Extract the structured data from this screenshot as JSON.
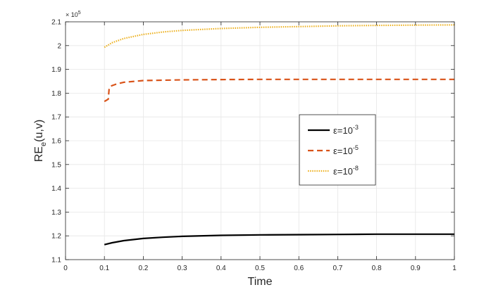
{
  "chart_data": {
    "type": "line",
    "xlabel": "Time",
    "ylabel": "RE",
    "ylabel_sub": "e",
    "ylabel_tail": "(u,v)",
    "y_multiplier_base": "× 10",
    "y_multiplier_exp": "5",
    "xlim": [
      0,
      1
    ],
    "ylim": [
      1.1,
      2.1
    ],
    "x_ticks": [
      0,
      0.1,
      0.2,
      0.3,
      0.4,
      0.5,
      0.6,
      0.7,
      0.8,
      0.9,
      1
    ],
    "x_tick_labels": [
      "0",
      "0.1",
      "0.2",
      "0.3",
      "0.4",
      "0.5",
      "0.6",
      "0.7",
      "0.8",
      "0.9",
      "1"
    ],
    "y_ticks": [
      1.1,
      1.2,
      1.3,
      1.4,
      1.5,
      1.6,
      1.7,
      1.8,
      1.9,
      2,
      2.1
    ],
    "y_tick_labels": [
      "1.1",
      "1.2",
      "1.3",
      "1.4",
      "1.5",
      "1.6",
      "1.7",
      "1.8",
      "1.9",
      "2",
      "2.1"
    ],
    "grid": true,
    "legend_position": "right-center",
    "series": [
      {
        "name": "ε=10",
        "name_exp": "-3",
        "color": "#000000",
        "dash": "solid",
        "x": [
          0.1,
          0.12,
          0.15,
          0.2,
          0.25,
          0.3,
          0.4,
          0.5,
          0.6,
          0.7,
          0.8,
          0.9,
          1.0
        ],
        "y": [
          1.163,
          1.171,
          1.18,
          1.189,
          1.194,
          1.198,
          1.202,
          1.204,
          1.205,
          1.206,
          1.207,
          1.207,
          1.207
        ]
      },
      {
        "name": "ε=10",
        "name_exp": "-5",
        "color": "#d95319",
        "dash": "dashed",
        "x": [
          0.1,
          0.11,
          0.112,
          0.115,
          0.12,
          0.13,
          0.15,
          0.2,
          0.3,
          0.4,
          0.5,
          0.6,
          0.7,
          0.8,
          0.9,
          1.0
        ],
        "y": [
          1.765,
          1.775,
          1.815,
          1.828,
          1.832,
          1.838,
          1.846,
          1.853,
          1.856,
          1.857,
          1.858,
          1.858,
          1.858,
          1.858,
          1.858,
          1.858
        ]
      },
      {
        "name": "ε=10",
        "name_exp": "-8",
        "color": "#edb120",
        "dash": "dotted",
        "x": [
          0.1,
          0.12,
          0.15,
          0.2,
          0.25,
          0.3,
          0.4,
          0.5,
          0.6,
          0.7,
          0.8,
          0.9,
          1.0
        ],
        "y": [
          1.993,
          2.012,
          2.03,
          2.047,
          2.057,
          2.064,
          2.072,
          2.077,
          2.08,
          2.083,
          2.085,
          2.086,
          2.087
        ]
      }
    ]
  }
}
